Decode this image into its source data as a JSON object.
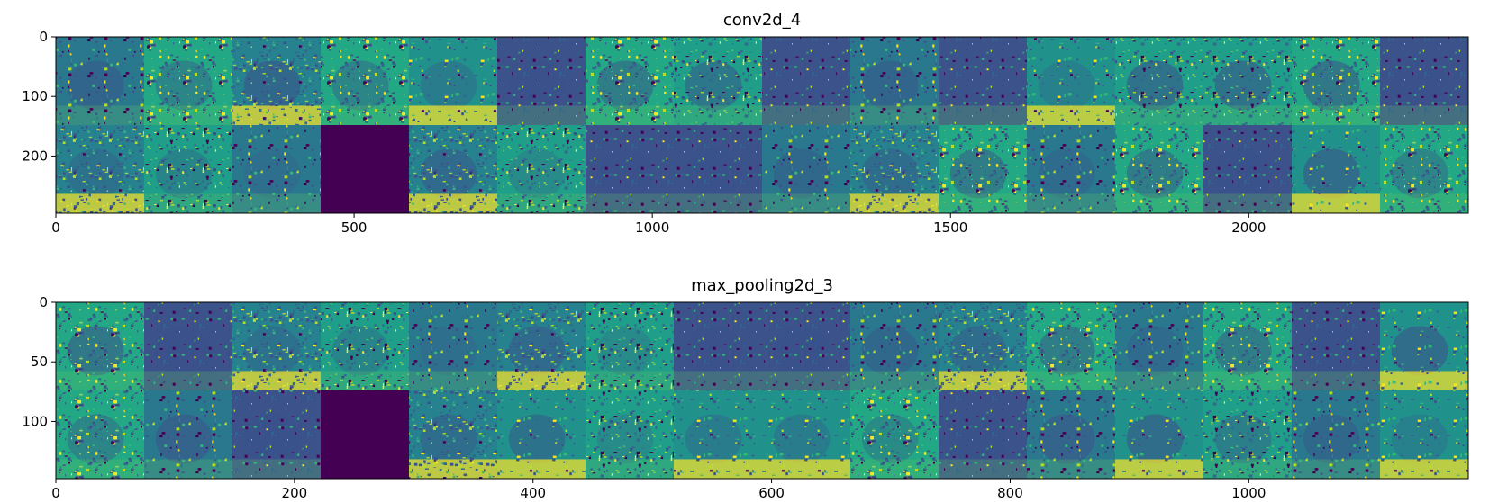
{
  "colors": {
    "viridis_dark": "#440154",
    "viridis_mid": "#21918c",
    "viridis_bright": "#fde725",
    "background": "#ffffff"
  },
  "chart_data": [
    {
      "type": "heatmap",
      "title": "conv2d_4",
      "colormap": "viridis",
      "grid_rows": 2,
      "grid_cols": 16,
      "xlim": [
        0,
        2368
      ],
      "ylim": [
        296,
        0
      ],
      "xticks": [
        0,
        500,
        1000,
        1500,
        2000
      ],
      "yticks": [
        0,
        100,
        200
      ],
      "dead_channels": [
        {
          "row": 1,
          "col": 3
        }
      ],
      "grid": false
    },
    {
      "type": "heatmap",
      "title": "max_pooling2d_3",
      "colormap": "viridis",
      "grid_rows": 2,
      "grid_cols": 16,
      "xlim": [
        0,
        1184
      ],
      "ylim": [
        148,
        0
      ],
      "xticks": [
        0,
        200,
        400,
        600,
        800,
        1000
      ],
      "yticks": [
        0,
        50,
        100
      ],
      "dead_channels": [
        {
          "row": 1,
          "col": 3
        }
      ],
      "grid": false
    }
  ]
}
